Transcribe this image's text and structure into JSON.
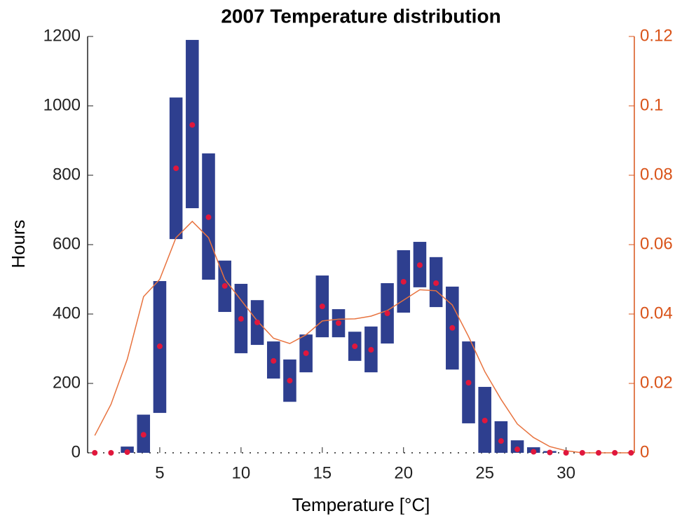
{
  "chart_data": {
    "type": "bar",
    "title": "2007 Temperature distribution",
    "x_label": "Temperature [°C]",
    "y_label": "Hours",
    "x": [
      1,
      2,
      3,
      4,
      5,
      6,
      7,
      8,
      9,
      10,
      11,
      12,
      13,
      14,
      15,
      16,
      17,
      18,
      19,
      20,
      21,
      22,
      23,
      24,
      25,
      26,
      27,
      28,
      29,
      30,
      31,
      32,
      33,
      34
    ],
    "xlim": [
      0.56,
      34.2
    ],
    "xticks": [
      5,
      10,
      15,
      20,
      25,
      30
    ],
    "ylim": [
      0,
      1200
    ],
    "yticks": [
      0,
      200,
      400,
      600,
      800,
      1000,
      1200
    ],
    "y2lim": [
      0,
      0.12
    ],
    "y2ticks": [
      0,
      0.02,
      0.04,
      0.06,
      0.08,
      0.1,
      0.12
    ],
    "y2_color": "#d95319",
    "series": [
      {
        "type": "range",
        "color": "#2e3f8f",
        "low": [
          null,
          null,
          0,
          0,
          115,
          616,
          705,
          499,
          406,
          287,
          311,
          214,
          147,
          232,
          333,
          333,
          265,
          232,
          315,
          404,
          477,
          420,
          240,
          85,
          0,
          0,
          0,
          0,
          0,
          null,
          null,
          null,
          null,
          null
        ],
        "high": [
          null,
          null,
          18,
          110,
          495,
          1024,
          1190,
          863,
          554,
          487,
          440,
          321,
          269,
          341,
          511,
          414,
          349,
          364,
          489,
          584,
          608,
          564,
          479,
          321,
          190,
          91,
          36,
          16,
          5,
          null,
          null,
          null,
          null,
          null
        ]
      },
      {
        "type": "scatter",
        "color": "#e0173c",
        "values": [
          0,
          0,
          2,
          52,
          307,
          820,
          945,
          679,
          481,
          386,
          376,
          265,
          208,
          287,
          422,
          374,
          307,
          297,
          402,
          493,
          541,
          489,
          360,
          202,
          93,
          34,
          10,
          3,
          1,
          0,
          0,
          0,
          0,
          0
        ]
      },
      {
        "type": "line",
        "axis": "y2",
        "color": "#e8733f",
        "values": [
          0.005,
          0.014,
          0.027,
          0.045,
          0.05,
          0.062,
          0.0667,
          0.062,
          0.05,
          0.044,
          0.038,
          0.033,
          0.0315,
          0.034,
          0.038,
          0.0385,
          0.0386,
          0.0394,
          0.041,
          0.044,
          0.047,
          0.0467,
          0.0426,
          0.0335,
          0.0234,
          0.0154,
          0.0083,
          0.0044,
          0.0018,
          0.0006,
          0,
          0,
          0,
          0
        ]
      }
    ]
  }
}
